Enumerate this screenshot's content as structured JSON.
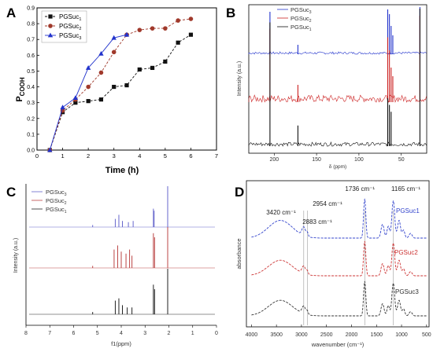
{
  "chart_data": [
    {
      "panel": "A",
      "type": "line",
      "xlabel": "Time (h)",
      "ylabel_main": "P",
      "ylabel_sub": "COOH",
      "xlim": [
        0,
        7
      ],
      "ylim": [
        0,
        0.9
      ],
      "xticks": [
        "0",
        "1",
        "2",
        "3",
        "4",
        "5",
        "6",
        "7"
      ],
      "yticks": [
        "0.0",
        "0.1",
        "0.2",
        "0.3",
        "0.4",
        "0.5",
        "0.6",
        "0.7",
        "0.8",
        "0.9"
      ],
      "legend_position": "top-left",
      "series": [
        {
          "name": "PGSuc",
          "sub": "1",
          "color": "#111111",
          "marker": "square",
          "dash": true,
          "x": [
            0.5,
            1,
            1.5,
            2,
            2.5,
            3,
            3.5,
            4,
            4.5,
            5,
            5.5,
            6
          ],
          "y": [
            0.0,
            0.24,
            0.3,
            0.31,
            0.32,
            0.4,
            0.41,
            0.51,
            0.52,
            0.56,
            0.68,
            0.73
          ]
        },
        {
          "name": "PGSuc",
          "sub": "2",
          "color": "#a0392b",
          "marker": "circle",
          "dash": true,
          "x": [
            0.5,
            1,
            1.5,
            2,
            2.5,
            3,
            3.5,
            4,
            4.5,
            5,
            5.5,
            6
          ],
          "y": [
            0.0,
            0.25,
            0.32,
            0.4,
            0.49,
            0.62,
            0.73,
            0.76,
            0.77,
            0.77,
            0.82,
            0.83
          ]
        },
        {
          "name": "PGSuc",
          "sub": "3",
          "color": "#2233cc",
          "marker": "triangle",
          "dash": false,
          "x": [
            0.5,
            1,
            1.5,
            2,
            2.5,
            3,
            3.5
          ],
          "y": [
            0.0,
            0.27,
            0.33,
            0.52,
            0.61,
            0.71,
            0.73
          ]
        }
      ]
    },
    {
      "panel": "B",
      "type": "line",
      "xlabel": "δ (ppm)",
      "ylabel": "Intensity (a.u.)",
      "xlim": [
        230,
        20
      ],
      "xticks": [
        "200",
        "150",
        "100",
        "50"
      ],
      "legend_position": "top-center",
      "series": [
        {
          "name": "PGSuc",
          "sub": "3",
          "color": "#2233cc",
          "peaks": [
            [
              205,
              0.9
            ],
            [
              172,
              0.2
            ],
            [
              66,
              0.95
            ],
            [
              64,
              0.85
            ],
            [
              62,
              0.6
            ],
            [
              60,
              0.4
            ],
            [
              28,
              1.0
            ]
          ]
        },
        {
          "name": "PGSuc",
          "sub": "2",
          "color": "#cc2222",
          "peaks": [
            [
              205,
              0.85
            ],
            [
              172,
              0.2
            ],
            [
              66,
              0.75
            ],
            [
              64,
              0.6
            ],
            [
              62,
              0.4
            ],
            [
              60,
              0.3
            ],
            [
              28,
              1.0
            ]
          ]
        },
        {
          "name": "PGSuc",
          "sub": "1",
          "color": "#111111",
          "peaks": [
            [
              205,
              0.9
            ],
            [
              172,
              0.15
            ],
            [
              66,
              0.35
            ],
            [
              64,
              0.3
            ],
            [
              62,
              0.25
            ],
            [
              28,
              1.0
            ]
          ]
        }
      ]
    },
    {
      "panel": "C",
      "type": "line",
      "xlabel": "f1(ppm)",
      "ylabel": "Intensity (a.u.)",
      "xlim": [
        8,
        0
      ],
      "xticks": [
        "8",
        "7",
        "6",
        "5",
        "4",
        "3",
        "2",
        "1",
        "0"
      ],
      "legend_position": "top-left",
      "series": [
        {
          "name": "PGSuc",
          "sub": "3",
          "color": "#6666cc",
          "peaks": [
            [
              5.2,
              0.05
            ],
            [
              4.25,
              0.2
            ],
            [
              4.1,
              0.3
            ],
            [
              3.95,
              0.15
            ],
            [
              3.7,
              0.12
            ],
            [
              3.5,
              0.15
            ],
            [
              2.65,
              0.45
            ],
            [
              2.62,
              0.4
            ],
            [
              2.05,
              1.0
            ]
          ]
        },
        {
          "name": "PGSuc",
          "sub": "2",
          "color": "#bb4444",
          "peaks": [
            [
              5.2,
              0.05
            ],
            [
              4.3,
              0.45
            ],
            [
              4.15,
              0.55
            ],
            [
              4.0,
              0.4
            ],
            [
              3.8,
              0.35
            ],
            [
              3.65,
              0.45
            ],
            [
              3.55,
              0.3
            ],
            [
              2.65,
              0.85
            ],
            [
              2.6,
              0.75
            ],
            [
              2.05,
              1.0
            ]
          ]
        },
        {
          "name": "PGSuc",
          "sub": "1",
          "color": "#222222",
          "peaks": [
            [
              5.2,
              0.05
            ],
            [
              4.25,
              0.3
            ],
            [
              4.1,
              0.35
            ],
            [
              3.95,
              0.2
            ],
            [
              3.75,
              0.15
            ],
            [
              3.55,
              0.15
            ],
            [
              2.65,
              0.65
            ],
            [
              2.6,
              0.55
            ],
            [
              2.05,
              1.0
            ]
          ]
        }
      ]
    },
    {
      "panel": "D",
      "type": "line",
      "xlabel": "wavenumber (cm⁻¹)",
      "ylabel": "absorbance",
      "xlim": [
        4100,
        450
      ],
      "xticks": [
        "4000",
        "3500",
        "3000",
        "2500",
        "2000",
        "1500",
        "1000",
        "500"
      ],
      "annotations": [
        "3420 cm⁻¹",
        "2954 cm⁻¹",
        "2883 cm⁻¹",
        "1736 cm⁻¹",
        "1165 cm⁻¹"
      ],
      "annotation_x": [
        3420,
        2954,
        2883,
        1736,
        1165
      ],
      "series": [
        {
          "name": "PGSuc1",
          "color": "#3344cc"
        },
        {
          "name": "PGSuc2",
          "color": "#cc3333"
        },
        {
          "name": "PGSuc3",
          "color": "#333333"
        }
      ]
    }
  ],
  "panel_labels": [
    "A",
    "B",
    "C",
    "D"
  ]
}
